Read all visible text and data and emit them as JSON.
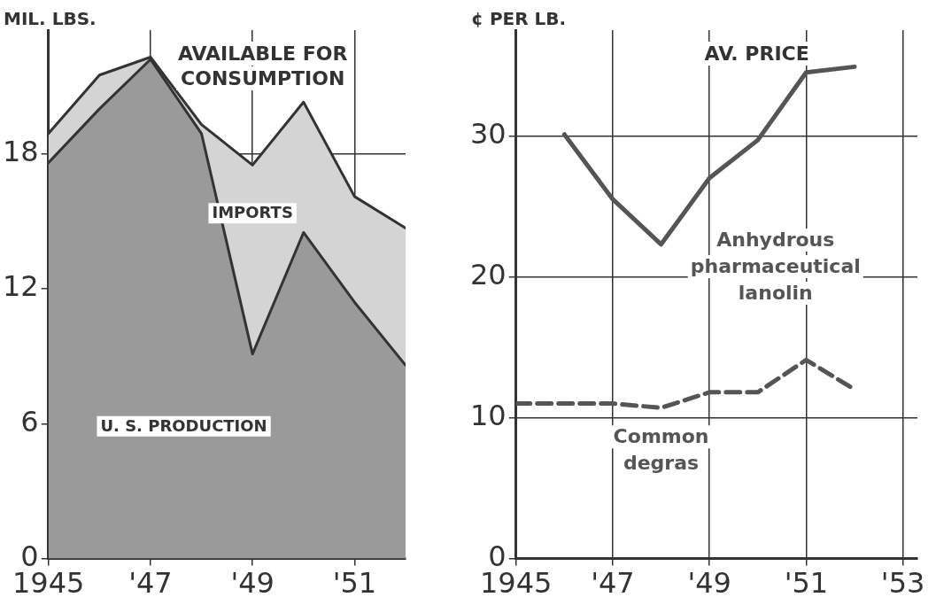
{
  "chart_data": [
    {
      "type": "area",
      "title": "AVAILABLE FOR CONSUMPTION",
      "ylabel": "MIL. LBS.",
      "stacked": true,
      "grid": true,
      "legend": false,
      "marker": "none",
      "x": [
        1945,
        1946,
        1947,
        1948,
        1949,
        1950,
        1951,
        1952
      ],
      "xlim": [
        1945,
        1952
      ],
      "xticks": [
        1945,
        {
          "value": 1947,
          "label": "'47"
        },
        {
          "value": 1949,
          "label": "'49"
        },
        {
          "value": 1951,
          "label": "'51"
        }
      ],
      "ylim": [
        0,
        23.5
      ],
      "yticks": [
        0,
        6,
        12,
        18
      ],
      "series": [
        {
          "name": "U. S. PRODUCTION",
          "color": "#9a9a9a",
          "values": [
            17.6,
            20,
            22.2,
            18.9,
            9.1,
            14.5,
            11.4,
            8.6
          ]
        },
        {
          "name": "IMPORTS",
          "color": "#d4d4d4",
          "values": [
            1.3,
            1.5,
            0.1,
            0.4,
            8.4,
            5.8,
            4.7,
            6.1
          ]
        }
      ]
    },
    {
      "type": "line",
      "title": "AV. PRICE",
      "ylabel": "¢ PER LB.",
      "grid": true,
      "legend": false,
      "marker": "none",
      "x": [
        1945,
        1946,
        1947,
        1948,
        1949,
        1950,
        1951,
        1952
      ],
      "xlim": [
        1945,
        1953.3
      ],
      "xticks": [
        1945,
        {
          "value": 1947,
          "label": "'47"
        },
        {
          "value": 1949,
          "label": "'49"
        },
        {
          "value": 1951,
          "label": "'51"
        },
        {
          "value": 1953,
          "label": "'53"
        }
      ],
      "ylim": [
        0,
        37.5
      ],
      "yticks": [
        0,
        10,
        20,
        30
      ],
      "series": [
        {
          "name": "Anhydrous pharmaceutical lanolin",
          "color": "#555555",
          "line_style": "solid",
          "values": [
            null,
            30.1,
            25.5,
            22.3,
            27,
            29.7,
            34.5,
            34.9
          ]
        },
        {
          "name": "Common degras",
          "color": "#555555",
          "line_style": "dashed",
          "values": [
            11,
            11,
            11,
            10.7,
            11.8,
            11.8,
            14.1,
            12
          ]
        }
      ]
    }
  ]
}
